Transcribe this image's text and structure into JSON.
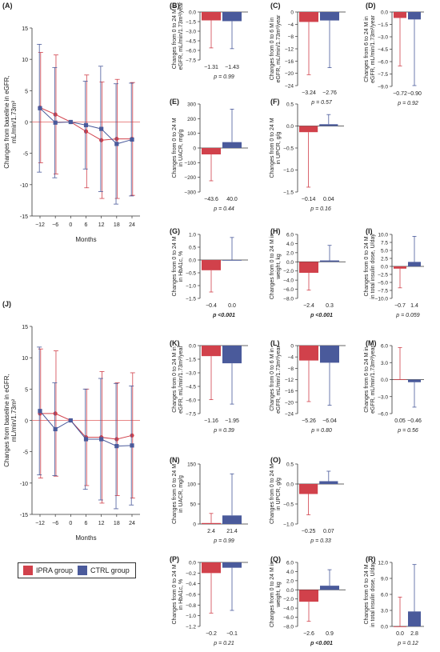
{
  "colors": {
    "ipra": "#d1414b",
    "ctrl": "#4a5a9b",
    "axis": "#333333",
    "zero": "#e06060"
  },
  "legend": {
    "ipra": "IPRA group",
    "ctrl": "CTRL group"
  },
  "chart_data": [
    {
      "id": "A",
      "type": "line",
      "panel_label": "(A)",
      "ylabel": [
        "Changes from baseline in eGFR,",
        "mL/min/1.73m²"
      ],
      "xlabel": "Months",
      "x": [
        -12,
        -6,
        0,
        6,
        12,
        18,
        24
      ],
      "ylim": [
        -15,
        15
      ],
      "yticks": [
        -15,
        -10,
        -5,
        0,
        5,
        10,
        15
      ],
      "series": [
        {
          "group": "ipra",
          "values": [
            2.3,
            1.2,
            0,
            -1.5,
            -2.9,
            -2.7,
            -2.7
          ],
          "err": [
            8.8,
            9.5,
            0,
            9,
            9.3,
            9.5,
            9
          ]
        },
        {
          "group": "ctrl",
          "values": [
            2.2,
            -0.1,
            0,
            -0.5,
            -1.1,
            -3.5,
            -2.8
          ],
          "err": [
            10.2,
            8.8,
            0,
            7,
            10,
            9.6,
            9
          ]
        }
      ]
    },
    {
      "id": "B",
      "type": "bar",
      "panel_label": "(B)",
      "ylabel": [
        "Changes from 0 to 24 M in",
        "eGFR, mL/min/1.73m²/year"
      ],
      "ylim": [
        -7.5,
        0
      ],
      "yticks": [
        "0.0",
        "-1.5",
        "-3.0",
        "-4.5",
        "-6.0",
        "-7.5"
      ],
      "yvals": [
        0,
        -1.5,
        -3,
        -4.5,
        -6,
        -7.5
      ],
      "values": [
        -1.31,
        -1.43
      ],
      "labels": [
        "−1.31",
        "−1.43"
      ],
      "err": [
        4.3,
        4.3
      ],
      "p": "p = 0.99",
      "p_bold": false
    },
    {
      "id": "C",
      "type": "bar",
      "panel_label": "(C)",
      "ylabel": [
        "Changes from 0 to 6 M in",
        "eGFR, mL/min/1.73m²/year"
      ],
      "ylim": [
        -24,
        0
      ],
      "yticks": [
        "0",
        "-4",
        "-8",
        "-12",
        "-16",
        "-20",
        "-24"
      ],
      "yvals": [
        0,
        -4,
        -8,
        -12,
        -16,
        -20,
        -24
      ],
      "values": [
        -3.24,
        -2.76
      ],
      "labels": [
        "−3.24",
        "−2.76"
      ],
      "err": [
        17.2,
        15.4
      ],
      "p": "p = 0.57",
      "p_bold": false
    },
    {
      "id": "D",
      "type": "bar",
      "panel_label": "(D)",
      "ylabel": [
        "Changes from 6 to 24 M in",
        "eGFR, mL/min/1.73m²/year"
      ],
      "ylim": [
        -9,
        0
      ],
      "yticks": [
        "0.0",
        "-1.5",
        "-3.0",
        "-4.5",
        "-6.0",
        "-7.5",
        "-9.0"
      ],
      "yvals": [
        0,
        -1.5,
        -3,
        -4.5,
        -6,
        -7.5,
        -9
      ],
      "values": [
        -0.72,
        -0.9
      ],
      "labels": [
        "−0.72",
        "−0.90"
      ],
      "err": [
        5.8,
        8
      ],
      "p": "p = 0.92",
      "p_bold": false
    },
    {
      "id": "E",
      "type": "bar",
      "panel_label": "(E)",
      "ylabel": [
        "Changes from 0 to 24 M",
        "in UACR, mg/g"
      ],
      "ylim": [
        -300,
        300
      ],
      "yticks": [
        "300",
        "200",
        "100",
        "0",
        "-100",
        "-200",
        "-300"
      ],
      "yvals": [
        300,
        200,
        100,
        0,
        -100,
        -200,
        -300
      ],
      "values": [
        -43.6,
        40
      ],
      "labels": [
        "−43.6",
        "40.0"
      ],
      "err": [
        180,
        225
      ],
      "p": "p = 0.44",
      "p_bold": false
    },
    {
      "id": "F",
      "type": "bar",
      "panel_label": "(F)",
      "ylabel": [
        "Changes from 0 to 24 M",
        "in UPCR, g/g"
      ],
      "ylim": [
        -1.5,
        0.5
      ],
      "yticks": [
        "0.5",
        "0.0",
        "-0.5",
        "-1.0",
        "-1.5"
      ],
      "yvals": [
        0.5,
        0,
        -0.5,
        -1,
        -1.5
      ],
      "values": [
        -0.14,
        0.04
      ],
      "labels": [
        "−0.14",
        "0.04"
      ],
      "err": [
        1.25,
        0.22
      ],
      "p": "p = 0.16",
      "p_bold": false
    },
    {
      "id": "G",
      "type": "bar",
      "panel_label": "(G)",
      "ylabel": [
        "Changes from 0 to 24 M",
        "in HbA1c, %"
      ],
      "ylim": [
        -1.5,
        1.0
      ],
      "yticks": [
        "1.0",
        "0.5",
        "0.0",
        "-0.5",
        "-1.0",
        "-1.5"
      ],
      "yvals": [
        1,
        0.5,
        0,
        -0.5,
        -1,
        -1.5
      ],
      "values": [
        -0.4,
        0.0
      ],
      "labels": [
        "−0.4",
        "0.0"
      ],
      "err": [
        0.85,
        0.88
      ],
      "p": "p <0.001",
      "p_bold": true
    },
    {
      "id": "H",
      "type": "bar",
      "panel_label": "(H)",
      "ylabel": [
        "Changes from 0 to 24 M in",
        "weight, kg"
      ],
      "ylim": [
        -8,
        6
      ],
      "yticks": [
        "6.0",
        "4.0",
        "2.0",
        "0.0",
        "-2.0",
        "-4.0",
        "-6.0",
        "-8.0"
      ],
      "yvals": [
        6,
        4,
        2,
        0,
        -2,
        -4,
        -6,
        -8
      ],
      "values": [
        -2.4,
        0.3
      ],
      "labels": [
        "−2.4",
        "0.3"
      ],
      "err": [
        3.8,
        3.3
      ],
      "p": "p <0.001",
      "p_bold": true
    },
    {
      "id": "I",
      "type": "bar",
      "panel_label": "(I)",
      "ylabel": [
        "Changes from 0 to 24 M",
        "in total insulin dose, U/day"
      ],
      "ylim": [
        -10,
        10
      ],
      "yticks": [
        "10.0",
        "7.5",
        "5.0",
        "2.5",
        "0.0",
        "-2.5",
        "-5.0",
        "-7.5",
        "-10.0"
      ],
      "yvals": [
        10,
        7.5,
        5,
        2.5,
        0,
        -2.5,
        -5,
        -7.5,
        -10
      ],
      "values": [
        -0.7,
        1.4
      ],
      "labels": [
        "−0.7",
        "1.4"
      ],
      "err": [
        6,
        8
      ],
      "p": "p = 0.059",
      "p_bold": false
    },
    {
      "id": "J",
      "type": "line",
      "panel_label": "(J)",
      "ylabel": [
        "Changes from baseline in eGFR,",
        "mL/min/1.73m²"
      ],
      "xlabel": "Months",
      "x": [
        -12,
        -6,
        0,
        6,
        12,
        18,
        24
      ],
      "ylim": [
        -15,
        15
      ],
      "yticks": [
        -15,
        -10,
        -5,
        0,
        5,
        10,
        15
      ],
      "series": [
        {
          "group": "ipra",
          "values": [
            1.1,
            1.1,
            0,
            -2.7,
            -2.7,
            -3,
            -2.4
          ],
          "err": [
            10.3,
            10,
            0,
            7.7,
            10.5,
            9,
            10
          ]
        },
        {
          "group": "ctrl",
          "values": [
            1.5,
            -1.4,
            0,
            -3,
            -3,
            -4.1,
            -4
          ],
          "err": [
            10.2,
            7.4,
            0,
            8,
            9.7,
            10,
            9.5
          ]
        }
      ]
    },
    {
      "id": "K",
      "type": "bar",
      "panel_label": "(K)",
      "ylabel": [
        "Changes from 0 to 24 M in",
        "eGFR, mL/min/1.73m²/year"
      ],
      "ylim": [
        -7.5,
        0
      ],
      "yticks": [
        "0.0",
        "-1.5",
        "-3.0",
        "-4.5",
        "-6.0",
        "-7.5"
      ],
      "yvals": [
        0,
        -1.5,
        -3,
        -4.5,
        -6,
        -7.5
      ],
      "values": [
        -1.16,
        -1.95
      ],
      "labels": [
        "−1.16",
        "−1.95"
      ],
      "err": [
        4.8,
        4.5
      ],
      "p": "p = 0.39",
      "p_bold": false
    },
    {
      "id": "L",
      "type": "bar",
      "panel_label": "(L)",
      "ylabel": [
        "Changes from 0 to 6 M in",
        "eGFR, mL/min/1.73m²/year"
      ],
      "ylim": [
        -24,
        0
      ],
      "yticks": [
        "0",
        "-4",
        "-8",
        "-12",
        "-16",
        "-20",
        "-24"
      ],
      "yvals": [
        0,
        -4,
        -8,
        -12,
        -16,
        -20,
        -24
      ],
      "values": [
        -5.26,
        -6.04
      ],
      "labels": [
        "−5.26",
        "−6.04"
      ],
      "err": [
        14.5,
        15
      ],
      "p": "p = 0.80",
      "p_bold": false
    },
    {
      "id": "M",
      "type": "bar",
      "panel_label": "(M)",
      "ylabel": [
        "Changes from 6 to 24 M in",
        "eGFR, mL/min/1.73m²/year"
      ],
      "ylim": [
        -6,
        6
      ],
      "yticks": [
        "6.0",
        "3.0",
        "0.0",
        "-3.0",
        "-6.0"
      ],
      "yvals": [
        6,
        3,
        0,
        -3,
        -6
      ],
      "values": [
        0.05,
        -0.46
      ],
      "labels": [
        "0.05",
        "−0.46"
      ],
      "err": [
        5.6,
        4.4
      ],
      "p": "p = 0.56",
      "p_bold": false
    },
    {
      "id": "N",
      "type": "bar",
      "panel_label": "(N)",
      "ylabel": [
        "Changes from 0 to 24 M",
        "in UACR, mg/g"
      ],
      "ylim": [
        0,
        150
      ],
      "yticks": [
        "150",
        "100",
        "50",
        "0"
      ],
      "yvals": [
        150,
        100,
        50,
        0
      ],
      "values": [
        2.4,
        21.4
      ],
      "labels": [
        "2.4",
        "21.4"
      ],
      "err": [
        24,
        104
      ],
      "p": "p = 0.99",
      "p_bold": false
    },
    {
      "id": "O",
      "type": "bar",
      "panel_label": "(O)",
      "ylabel": [
        "Changes from 0 to 24 M",
        "in UPCR, g/g"
      ],
      "ylim": [
        -1.0,
        0.5
      ],
      "yticks": [
        "0.5",
        "0.0",
        "-0.5",
        "-1.0"
      ],
      "yvals": [
        0.5,
        0,
        -0.5,
        -1
      ],
      "values": [
        -0.25,
        0.07
      ],
      "labels": [
        "−0.25",
        "0.07"
      ],
      "err": [
        0.52,
        0.25
      ],
      "p": "p = 0.33",
      "p_bold": false
    },
    {
      "id": "P",
      "type": "bar",
      "panel_label": "(P)",
      "ylabel": [
        "Changes from 0 to 24 M",
        "in HbA1c, %"
      ],
      "ylim": [
        -1.2,
        0
      ],
      "yticks": [
        "0.0",
        "-0.2",
        "-0.4",
        "-0.6",
        "-0.8",
        "-1.0",
        "-1.2"
      ],
      "yvals": [
        0,
        -0.2,
        -0.4,
        -0.6,
        -0.8,
        -1,
        -1.2
      ],
      "values": [
        -0.2,
        -0.1
      ],
      "labels": [
        "−0.2",
        "−0.1"
      ],
      "err": [
        0.75,
        0.8
      ],
      "p": "p = 0.21",
      "p_bold": false
    },
    {
      "id": "Q",
      "type": "bar",
      "panel_label": "(Q)",
      "ylabel": [
        "Changes from 0 to 24 M in",
        "weight, kg"
      ],
      "ylim": [
        -8,
        6
      ],
      "yticks": [
        "6.0",
        "4.0",
        "2.0",
        "0.0",
        "-2.0",
        "-4.0",
        "-6.0",
        "-8.0"
      ],
      "yvals": [
        6,
        4,
        2,
        0,
        -2,
        -4,
        -6,
        -8
      ],
      "values": [
        -2.6,
        0.9
      ],
      "labels": [
        "−2.6",
        "0.9"
      ],
      "err": [
        4.3,
        3.5
      ],
      "p": "p <0.001",
      "p_bold": true
    },
    {
      "id": "R",
      "type": "bar",
      "panel_label": "(R)",
      "ylabel": [
        "Changes from 0 to 24 M",
        "in total insulin dose, U/day"
      ],
      "ylim": [
        0,
        12
      ],
      "yticks": [
        "12.0",
        "9.0",
        "6.0",
        "3.0",
        "0.0"
      ],
      "yvals": [
        12,
        9,
        6,
        3,
        0
      ],
      "values": [
        0.0,
        2.8
      ],
      "labels": [
        "0.0",
        "2.8"
      ],
      "err": [
        5.5,
        8.8
      ],
      "p": "p = 0.12",
      "p_bold": false
    }
  ]
}
